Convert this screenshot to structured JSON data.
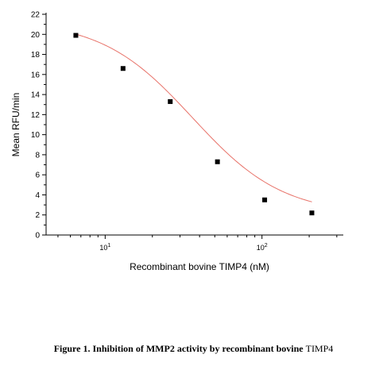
{
  "chart_data": {
    "type": "scatter",
    "title": "",
    "xlabel": "Recombinant bovine TIMP4 (nM)",
    "ylabel": "Mean RFU/min",
    "xscale": "log",
    "xlim": [
      4.2,
      330
    ],
    "ylim": [
      0,
      22
    ],
    "grid": false,
    "legend": "none",
    "yticks": [
      "0",
      "2",
      "4",
      "6",
      "8",
      "10",
      "12",
      "14",
      "16",
      "18",
      "20",
      "22"
    ],
    "xticks": [
      {
        "value": 10,
        "base": "10",
        "exp": "1"
      },
      {
        "value": 100,
        "base": "10",
        "exp": "2"
      }
    ],
    "series": [
      {
        "marker": "square",
        "marker_color": "#000000",
        "points": [
          {
            "x": 6.5,
            "y": 19.9
          },
          {
            "x": 13,
            "y": 16.6
          },
          {
            "x": 26,
            "y": 13.3
          },
          {
            "x": 52,
            "y": 7.3
          },
          {
            "x": 104,
            "y": 3.5
          },
          {
            "x": 208,
            "y": 2.2
          }
        ]
      }
    ],
    "fit_curve": {
      "color": "#e8736a",
      "model": "4PL",
      "top": 21.4,
      "bottom": 2.0,
      "ec50": 36,
      "hill": 1.5
    }
  },
  "caption": {
    "bold_text": "Figure 1. Inhibition of MMP2 activity by recombinant bovine ",
    "normal_text": "TIMP4"
  }
}
